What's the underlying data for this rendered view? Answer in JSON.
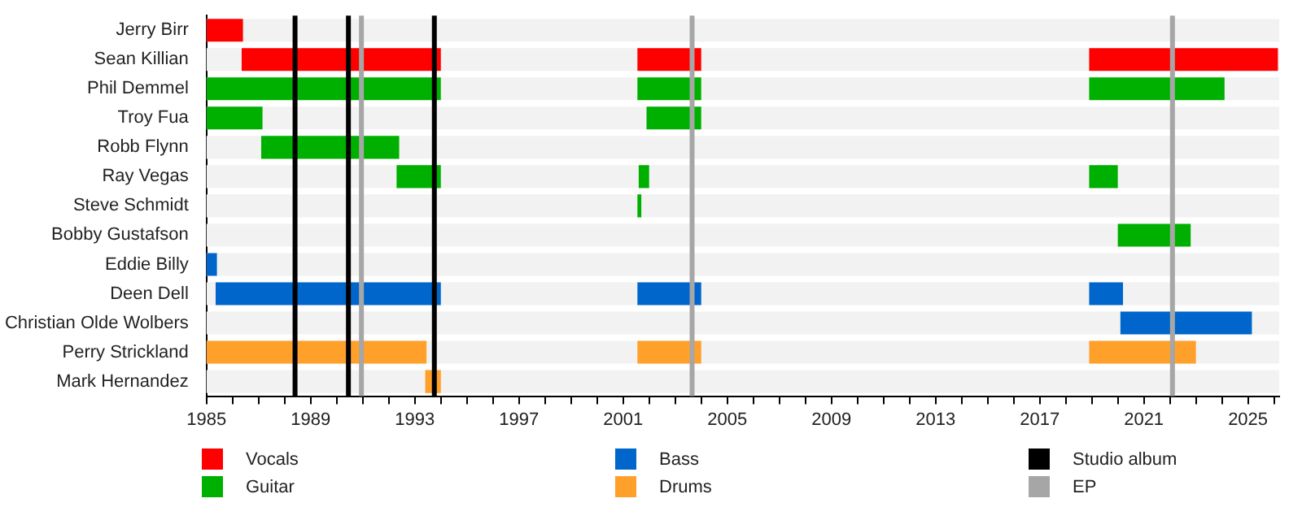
{
  "chart_data": {
    "type": "bar",
    "orientation": "horizontal",
    "grid": false,
    "legend": "bottom",
    "categories": [
      "Jerry Birr",
      "Sean Killian",
      "Phil Demmel",
      "Troy Fua",
      "Robb Flynn",
      "Ray Vegas",
      "Steve Schmidt",
      "Bobby Gustafson",
      "Eddie Billy",
      "Deen Dell",
      "Christian Olde Wolbers",
      "Perry Strickland",
      "Mark Hernandez"
    ],
    "xlim": [
      1985,
      2026.2
    ],
    "xticks": [
      1985,
      {
        "value": 1986,
        "label": null
      },
      {
        "value": 1987,
        "label": null
      },
      {
        "value": 1988,
        "label": null
      },
      1989,
      {
        "value": 1990,
        "label": null
      },
      {
        "value": 1991,
        "label": null
      },
      {
        "value": 1992,
        "label": null
      },
      1993,
      {
        "value": 1994,
        "label": null
      },
      {
        "value": 1995,
        "label": null
      },
      {
        "value": 1996,
        "label": null
      },
      1997,
      {
        "value": 1998,
        "label": null
      },
      {
        "value": 1999,
        "label": null
      },
      {
        "value": 2000,
        "label": null
      },
      2001,
      {
        "value": 2002,
        "label": null
      },
      {
        "value": 2003,
        "label": null
      },
      {
        "value": 2004,
        "label": null
      },
      2005,
      {
        "value": 2006,
        "label": null
      },
      {
        "value": 2007,
        "label": null
      },
      {
        "value": 2008,
        "label": null
      },
      2009,
      {
        "value": 2010,
        "label": null
      },
      {
        "value": 2011,
        "label": null
      },
      {
        "value": 2012,
        "label": null
      },
      2013,
      {
        "value": 2014,
        "label": null
      },
      {
        "value": 2015,
        "label": null
      },
      {
        "value": 2016,
        "label": null
      },
      2017,
      {
        "value": 2018,
        "label": null
      },
      {
        "value": 2019,
        "label": null
      },
      {
        "value": 2020,
        "label": null
      },
      2021,
      {
        "value": 2022,
        "label": null
      },
      {
        "value": 2023,
        "label": null
      },
      {
        "value": 2024,
        "label": null
      },
      2025,
      {
        "value": 2026,
        "label": null
      }
    ],
    "series": [
      {
        "name": "Vocals",
        "color": "#ff0000",
        "values": [
          1.4,
          7.65,
          null,
          null,
          null,
          null,
          null,
          null,
          null,
          null,
          null,
          null,
          null
        ],
        "base": [
          1985,
          1986.35,
          null,
          null,
          null,
          null,
          null,
          null,
          null,
          null,
          null,
          null,
          null
        ]
      },
      {
        "color": "#ff0000",
        "values": [
          null,
          2.45,
          null,
          null,
          null,
          null,
          null,
          null,
          null,
          null,
          null,
          null,
          null
        ],
        "base": [
          null,
          2001.55,
          null,
          null,
          null,
          null,
          null,
          null,
          null,
          null,
          null,
          null,
          null
        ]
      },
      {
        "color": "#ff0000",
        "values": [
          null,
          7.25,
          null,
          null,
          null,
          null,
          null,
          null,
          null,
          null,
          null,
          null,
          null
        ],
        "base": [
          null,
          2018.9,
          null,
          null,
          null,
          null,
          null,
          null,
          null,
          null,
          null,
          null,
          null
        ]
      },
      {
        "name": "Guitar",
        "color": "#00b000",
        "values": [
          null,
          null,
          9.0,
          2.15,
          5.3,
          1.7,
          null,
          null,
          null,
          null,
          null,
          null,
          null
        ],
        "base": [
          null,
          null,
          1985,
          1985,
          1987.1,
          1992.3,
          null,
          null,
          null,
          null,
          null,
          null,
          null
        ]
      },
      {
        "color": "#00b000",
        "values": [
          null,
          null,
          2.45,
          2.1,
          null,
          0.4,
          0.15,
          null,
          null,
          null,
          null,
          null,
          null
        ],
        "base": [
          null,
          null,
          2001.55,
          2001.9,
          null,
          2001.6,
          2001.55,
          null,
          null,
          null,
          null,
          null,
          null
        ]
      },
      {
        "color": "#00b000",
        "values": [
          null,
          null,
          5.2,
          null,
          null,
          1.1,
          null,
          2.8,
          null,
          null,
          null,
          null,
          null
        ],
        "base": [
          null,
          null,
          2018.9,
          null,
          null,
          2018.9,
          null,
          2020,
          null,
          null,
          null,
          null,
          null
        ]
      },
      {
        "name": "Bass",
        "color": "#0066cc",
        "values": [
          null,
          null,
          null,
          null,
          null,
          null,
          null,
          null,
          0.4,
          8.65,
          null,
          null,
          null
        ],
        "base": [
          null,
          null,
          null,
          null,
          null,
          null,
          null,
          null,
          1985,
          1985.35,
          null,
          null,
          null
        ]
      },
      {
        "color": "#0066cc",
        "values": [
          null,
          null,
          null,
          null,
          null,
          null,
          null,
          null,
          null,
          2.45,
          null,
          null,
          null
        ],
        "base": [
          null,
          null,
          null,
          null,
          null,
          null,
          null,
          null,
          null,
          2001.55,
          null,
          null,
          null
        ]
      },
      {
        "color": "#0066cc",
        "values": [
          null,
          null,
          null,
          null,
          null,
          null,
          null,
          null,
          null,
          1.3,
          5.05,
          null,
          null
        ],
        "base": [
          null,
          null,
          null,
          null,
          null,
          null,
          null,
          null,
          null,
          2018.9,
          2020.1,
          null,
          null
        ]
      },
      {
        "name": "Drums",
        "color": "#ffa02a",
        "values": [
          null,
          null,
          null,
          null,
          null,
          null,
          null,
          null,
          null,
          null,
          null,
          8.45,
          0.6
        ],
        "base": [
          null,
          null,
          null,
          null,
          null,
          null,
          null,
          null,
          null,
          null,
          null,
          1985,
          1993.4
        ]
      },
      {
        "color": "#ffa02a",
        "values": [
          null,
          null,
          null,
          null,
          null,
          null,
          null,
          null,
          null,
          null,
          null,
          2.45,
          null
        ],
        "base": [
          null,
          null,
          null,
          null,
          null,
          null,
          null,
          null,
          null,
          null,
          null,
          2001.55,
          null
        ]
      },
      {
        "color": "#ffa02a",
        "values": [
          null,
          null,
          null,
          null,
          null,
          null,
          null,
          null,
          null,
          null,
          null,
          4.1,
          null
        ],
        "base": [
          null,
          null,
          null,
          null,
          null,
          null,
          null,
          null,
          null,
          null,
          null,
          2018.9,
          null
        ]
      }
    ],
    "ref_lines": [
      {
        "axis": "x",
        "value": 1988.4,
        "label": "Studio album",
        "color": "#000000"
      },
      {
        "axis": "x",
        "value": 1990.45,
        "color": "#000000"
      },
      {
        "axis": "x",
        "value": 1993.75,
        "color": "#000000"
      },
      {
        "axis": "x",
        "value": 1990.95,
        "label": "EP",
        "color": "#a6a6a6"
      },
      {
        "axis": "x",
        "value": 2003.65,
        "color": "#a6a6a6"
      },
      {
        "axis": "x",
        "value": 2022.1,
        "color": "#a6a6a6"
      }
    ]
  }
}
